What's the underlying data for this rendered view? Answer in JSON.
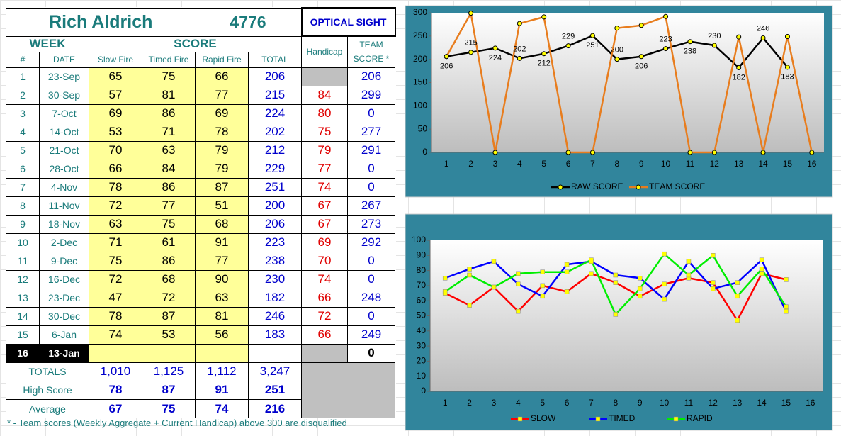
{
  "header": {
    "name": "Rich Aldrich",
    "id": 4776,
    "sight": "OPTICAL SIGHT"
  },
  "table": {
    "group_headers": {
      "week": "WEEK",
      "score": "SCORE",
      "handicap": "Handicap",
      "team": "TEAM SCORE *"
    },
    "columns": [
      "#",
      "DATE",
      "Slow Fire",
      "Timed Fire",
      "Rapid Fire",
      "TOTAL"
    ],
    "rows": [
      [
        1,
        "23-Sep",
        65,
        75,
        66,
        206,
        null,
        206
      ],
      [
        2,
        "30-Sep",
        57,
        81,
        77,
        215,
        84,
        299
      ],
      [
        3,
        "7-Oct",
        69,
        86,
        69,
        224,
        80,
        0
      ],
      [
        4,
        "14-Oct",
        53,
        71,
        78,
        202,
        75,
        277
      ],
      [
        5,
        "21-Oct",
        70,
        63,
        79,
        212,
        79,
        291
      ],
      [
        6,
        "28-Oct",
        66,
        84,
        79,
        229,
        77,
        0
      ],
      [
        7,
        "4-Nov",
        78,
        86,
        87,
        251,
        74,
        0
      ],
      [
        8,
        "11-Nov",
        72,
        77,
        51,
        200,
        67,
        267
      ],
      [
        9,
        "18-Nov",
        63,
        75,
        68,
        206,
        67,
        273
      ],
      [
        10,
        "2-Dec",
        71,
        61,
        91,
        223,
        69,
        292
      ],
      [
        11,
        "9-Dec",
        75,
        86,
        77,
        238,
        70,
        0
      ],
      [
        12,
        "16-Dec",
        72,
        68,
        90,
        230,
        74,
        0
      ],
      [
        13,
        "23-Dec",
        47,
        72,
        63,
        182,
        66,
        248
      ],
      [
        14,
        "30-Dec",
        78,
        87,
        81,
        246,
        72,
        0
      ],
      [
        15,
        "6-Jan",
        74,
        53,
        56,
        183,
        66,
        249
      ],
      [
        16,
        "13-Jan",
        null,
        null,
        null,
        null,
        null,
        0
      ]
    ],
    "summary": [
      {
        "label": "TOTALS",
        "values": [
          "1,010",
          "1,125",
          "1,112",
          "3,247"
        ]
      },
      {
        "label": "High Score",
        "values": [
          78,
          87,
          91,
          251
        ]
      },
      {
        "label": "Average",
        "values": [
          67,
          75,
          74,
          216
        ]
      }
    ],
    "footnote": "* - Team scores (Weekly Aggregate + Current Handicap) above 300 are disqualified"
  },
  "chart_data": [
    {
      "type": "line",
      "categories": [
        1,
        2,
        3,
        4,
        5,
        6,
        7,
        8,
        9,
        10,
        11,
        12,
        13,
        14,
        15,
        16
      ],
      "ylim": [
        0,
        300
      ],
      "yticks": [
        0,
        50,
        100,
        150,
        200,
        250,
        300
      ],
      "grid": false,
      "marker": "circle",
      "marker_color": "#ffff00",
      "legend": "bottom",
      "series": [
        {
          "name": "RAW SCORE",
          "color": "#000000",
          "data_labels": true,
          "values": [
            206,
            215,
            224,
            202,
            212,
            229,
            251,
            200,
            206,
            223,
            238,
            230,
            182,
            246,
            183,
            null
          ]
        },
        {
          "name": "TEAM SCORE",
          "color": "#e87d1e",
          "values": [
            206,
            299,
            0,
            277,
            291,
            0,
            0,
            267,
            273,
            292,
            0,
            0,
            248,
            0,
            249,
            0
          ]
        }
      ]
    },
    {
      "type": "line",
      "categories": [
        1,
        2,
        3,
        4,
        5,
        6,
        7,
        8,
        9,
        10,
        11,
        12,
        13,
        14,
        15,
        16
      ],
      "ylim": [
        0,
        100
      ],
      "yticks": [
        0,
        10,
        20,
        30,
        40,
        50,
        60,
        70,
        80,
        90,
        100
      ],
      "grid": false,
      "marker": "square",
      "marker_color": "#ffff00",
      "legend": "bottom",
      "series": [
        {
          "name": "SLOW",
          "color": "#ff0000",
          "values": [
            65,
            57,
            69,
            53,
            70,
            66,
            78,
            72,
            63,
            71,
            75,
            72,
            47,
            78,
            74,
            null
          ]
        },
        {
          "name": "TIMED",
          "color": "#0000ff",
          "values": [
            75,
            81,
            86,
            71,
            63,
            84,
            86,
            77,
            75,
            61,
            86,
            68,
            72,
            87,
            53,
            null
          ]
        },
        {
          "name": "RAPID",
          "color": "#00ee00",
          "values": [
            66,
            77,
            69,
            78,
            79,
            79,
            87,
            51,
            68,
            91,
            77,
            90,
            63,
            81,
            56,
            null
          ]
        }
      ]
    }
  ]
}
